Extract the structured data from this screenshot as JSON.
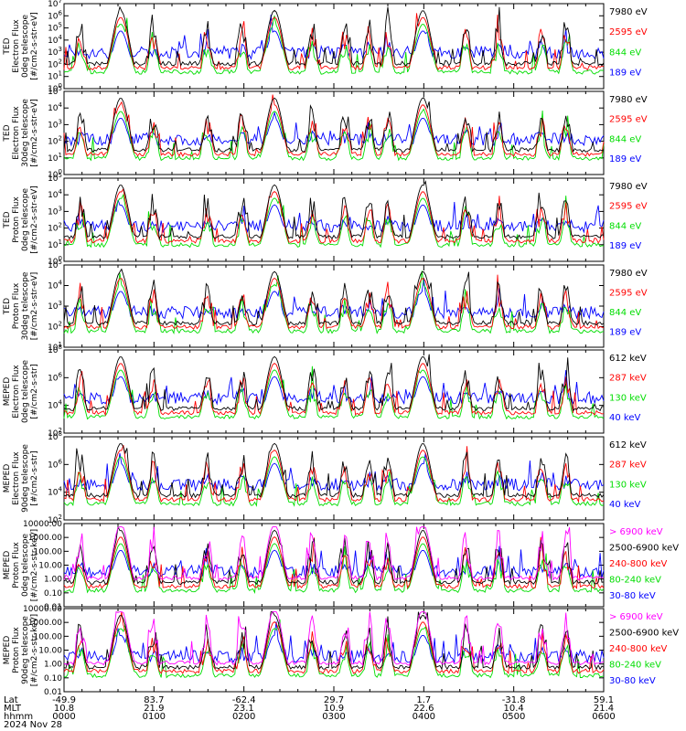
{
  "chart_data": [
    {
      "type": "line",
      "ylabel": [
        "TED",
        "Electron Flux",
        "0deg telescope",
        "[#/cm2-s-str-eV]"
      ],
      "ylim": [
        1,
        10000000
      ],
      "yscale": "log",
      "yticks": [
        "10^0",
        "10^1",
        "10^2",
        "10^3",
        "10^4",
        "10^5",
        "10^6",
        "10^7"
      ],
      "series": [
        {
          "name": "7980 eV",
          "color": "#000000"
        },
        {
          "name": "2595 eV",
          "color": "#ff0000"
        },
        {
          "name": "844 eV",
          "color": "#00dd00"
        },
        {
          "name": "189 eV",
          "color": "#0000ff"
        }
      ]
    },
    {
      "type": "line",
      "ylabel": [
        "TED",
        "Electron Flux",
        "30deg telescope",
        "[#/cm2-s-str-eV]"
      ],
      "ylim": [
        1,
        100000
      ],
      "yscale": "log",
      "yticks": [
        "10^0",
        "10^1",
        "10^2",
        "10^3",
        "10^4",
        "10^5"
      ],
      "series": [
        {
          "name": "7980 eV",
          "color": "#000000"
        },
        {
          "name": "2595 eV",
          "color": "#ff0000"
        },
        {
          "name": "844 eV",
          "color": "#00dd00"
        },
        {
          "name": "189 eV",
          "color": "#0000ff"
        }
      ]
    },
    {
      "type": "line",
      "ylabel": [
        "TED",
        "Proton Flux",
        "0deg telescope",
        "[#/cm2-s-str-eV]"
      ],
      "ylim": [
        1,
        100000
      ],
      "yscale": "log",
      "yticks": [
        "10^0",
        "10^1",
        "10^2",
        "10^3",
        "10^4",
        "10^5"
      ],
      "series": [
        {
          "name": "7980 eV",
          "color": "#000000"
        },
        {
          "name": "2595 eV",
          "color": "#ff0000"
        },
        {
          "name": "844 eV",
          "color": "#00dd00"
        },
        {
          "name": "189 eV",
          "color": "#0000ff"
        }
      ]
    },
    {
      "type": "line",
      "ylabel": [
        "TED",
        "Proton Flux",
        "30deg telescope",
        "[#/cm2-s-str-eV]"
      ],
      "ylim": [
        10,
        100000
      ],
      "yscale": "log",
      "yticks": [
        "10^1",
        "10^2",
        "10^3",
        "10^4",
        "10^5"
      ],
      "series": [
        {
          "name": "7980 eV",
          "color": "#000000"
        },
        {
          "name": "2595 eV",
          "color": "#ff0000"
        },
        {
          "name": "844 eV",
          "color": "#00dd00"
        },
        {
          "name": "189 eV",
          "color": "#0000ff"
        }
      ]
    },
    {
      "type": "line",
      "ylabel": [
        "MEPED",
        "Electron Flux",
        "0deg telescope",
        "[#/cm2-s-str]"
      ],
      "ylim": [
        100,
        100000000
      ],
      "yscale": "log",
      "yticks": [
        "10^2",
        "10^4",
        "10^6",
        "10^8"
      ],
      "series": [
        {
          "name": "612 keV",
          "color": "#000000"
        },
        {
          "name": "287 keV",
          "color": "#ff0000"
        },
        {
          "name": "130 keV",
          "color": "#00dd00"
        },
        {
          "name": "40 keV",
          "color": "#0000ff"
        }
      ]
    },
    {
      "type": "line",
      "ylabel": [
        "MEPED",
        "Electron Flux",
        "90deg telescope",
        "[#/cm2-s-str]"
      ],
      "ylim": [
        100,
        100000000
      ],
      "yscale": "log",
      "yticks": [
        "10^2",
        "10^4",
        "10^6",
        "10^8"
      ],
      "series": [
        {
          "name": "612 keV",
          "color": "#000000"
        },
        {
          "name": "287 keV",
          "color": "#ff0000"
        },
        {
          "name": "130 keV",
          "color": "#00dd00"
        },
        {
          "name": "40 keV",
          "color": "#0000ff"
        }
      ]
    },
    {
      "type": "line",
      "ylabel": [
        "MEPED",
        "Proton Flux",
        "0deg telescope",
        "[#/cm2-s-str-keV]"
      ],
      "ylim": [
        0.01,
        10000
      ],
      "yscale": "log",
      "yticks": [
        "0.01",
        "0.10",
        "1.00",
        "10.00",
        "100.00",
        "1000.00",
        "10000.00"
      ],
      "series": [
        {
          "name": "> 6900 keV",
          "color": "#ff00ff"
        },
        {
          "name": "2500-6900 keV",
          "color": "#000000"
        },
        {
          "name": "240-800 keV",
          "color": "#ff0000"
        },
        {
          "name": "80-240 keV",
          "color": "#00dd00"
        },
        {
          "name": "30-80 keV",
          "color": "#0000ff"
        }
      ]
    },
    {
      "type": "line",
      "ylabel": [
        "MEPED",
        "Proton Flux",
        "90deg telescope",
        "[#/cm2-s-str-keV]"
      ],
      "ylim": [
        0.01,
        10000
      ],
      "yscale": "log",
      "yticks": [
        "0.01",
        "0.10",
        "1.00",
        "10.00",
        "100.00",
        "1000.00",
        "10000.00"
      ],
      "series": [
        {
          "name": "> 6900 keV",
          "color": "#ff00ff"
        },
        {
          "name": "2500-6900 keV",
          "color": "#000000"
        },
        {
          "name": "240-800 keV",
          "color": "#ff0000"
        },
        {
          "name": "80-240 keV",
          "color": "#00dd00"
        },
        {
          "name": "30-80 keV",
          "color": "#0000ff"
        }
      ]
    }
  ],
  "xaxis": {
    "row_labels": [
      "Lat",
      "MLT",
      "hhmm",
      "2024 Nov 28"
    ],
    "ticks": [
      {
        "lat": "-49.9",
        "mlt": "10.8",
        "hhmm": "0000"
      },
      {
        "lat": "83.7",
        "mlt": "21.9",
        "hhmm": "0100"
      },
      {
        "lat": "-62.4",
        "mlt": "23.1",
        "hhmm": "0200"
      },
      {
        "lat": "29.7",
        "mlt": "10.9",
        "hhmm": "0300"
      },
      {
        "lat": "1.7",
        "mlt": "22.6",
        "hhmm": "0400"
      },
      {
        "lat": "-31.8",
        "mlt": "10.4",
        "hhmm": "0500"
      },
      {
        "lat": "59.1",
        "mlt": "21.4",
        "hhmm": "0600"
      }
    ]
  }
}
